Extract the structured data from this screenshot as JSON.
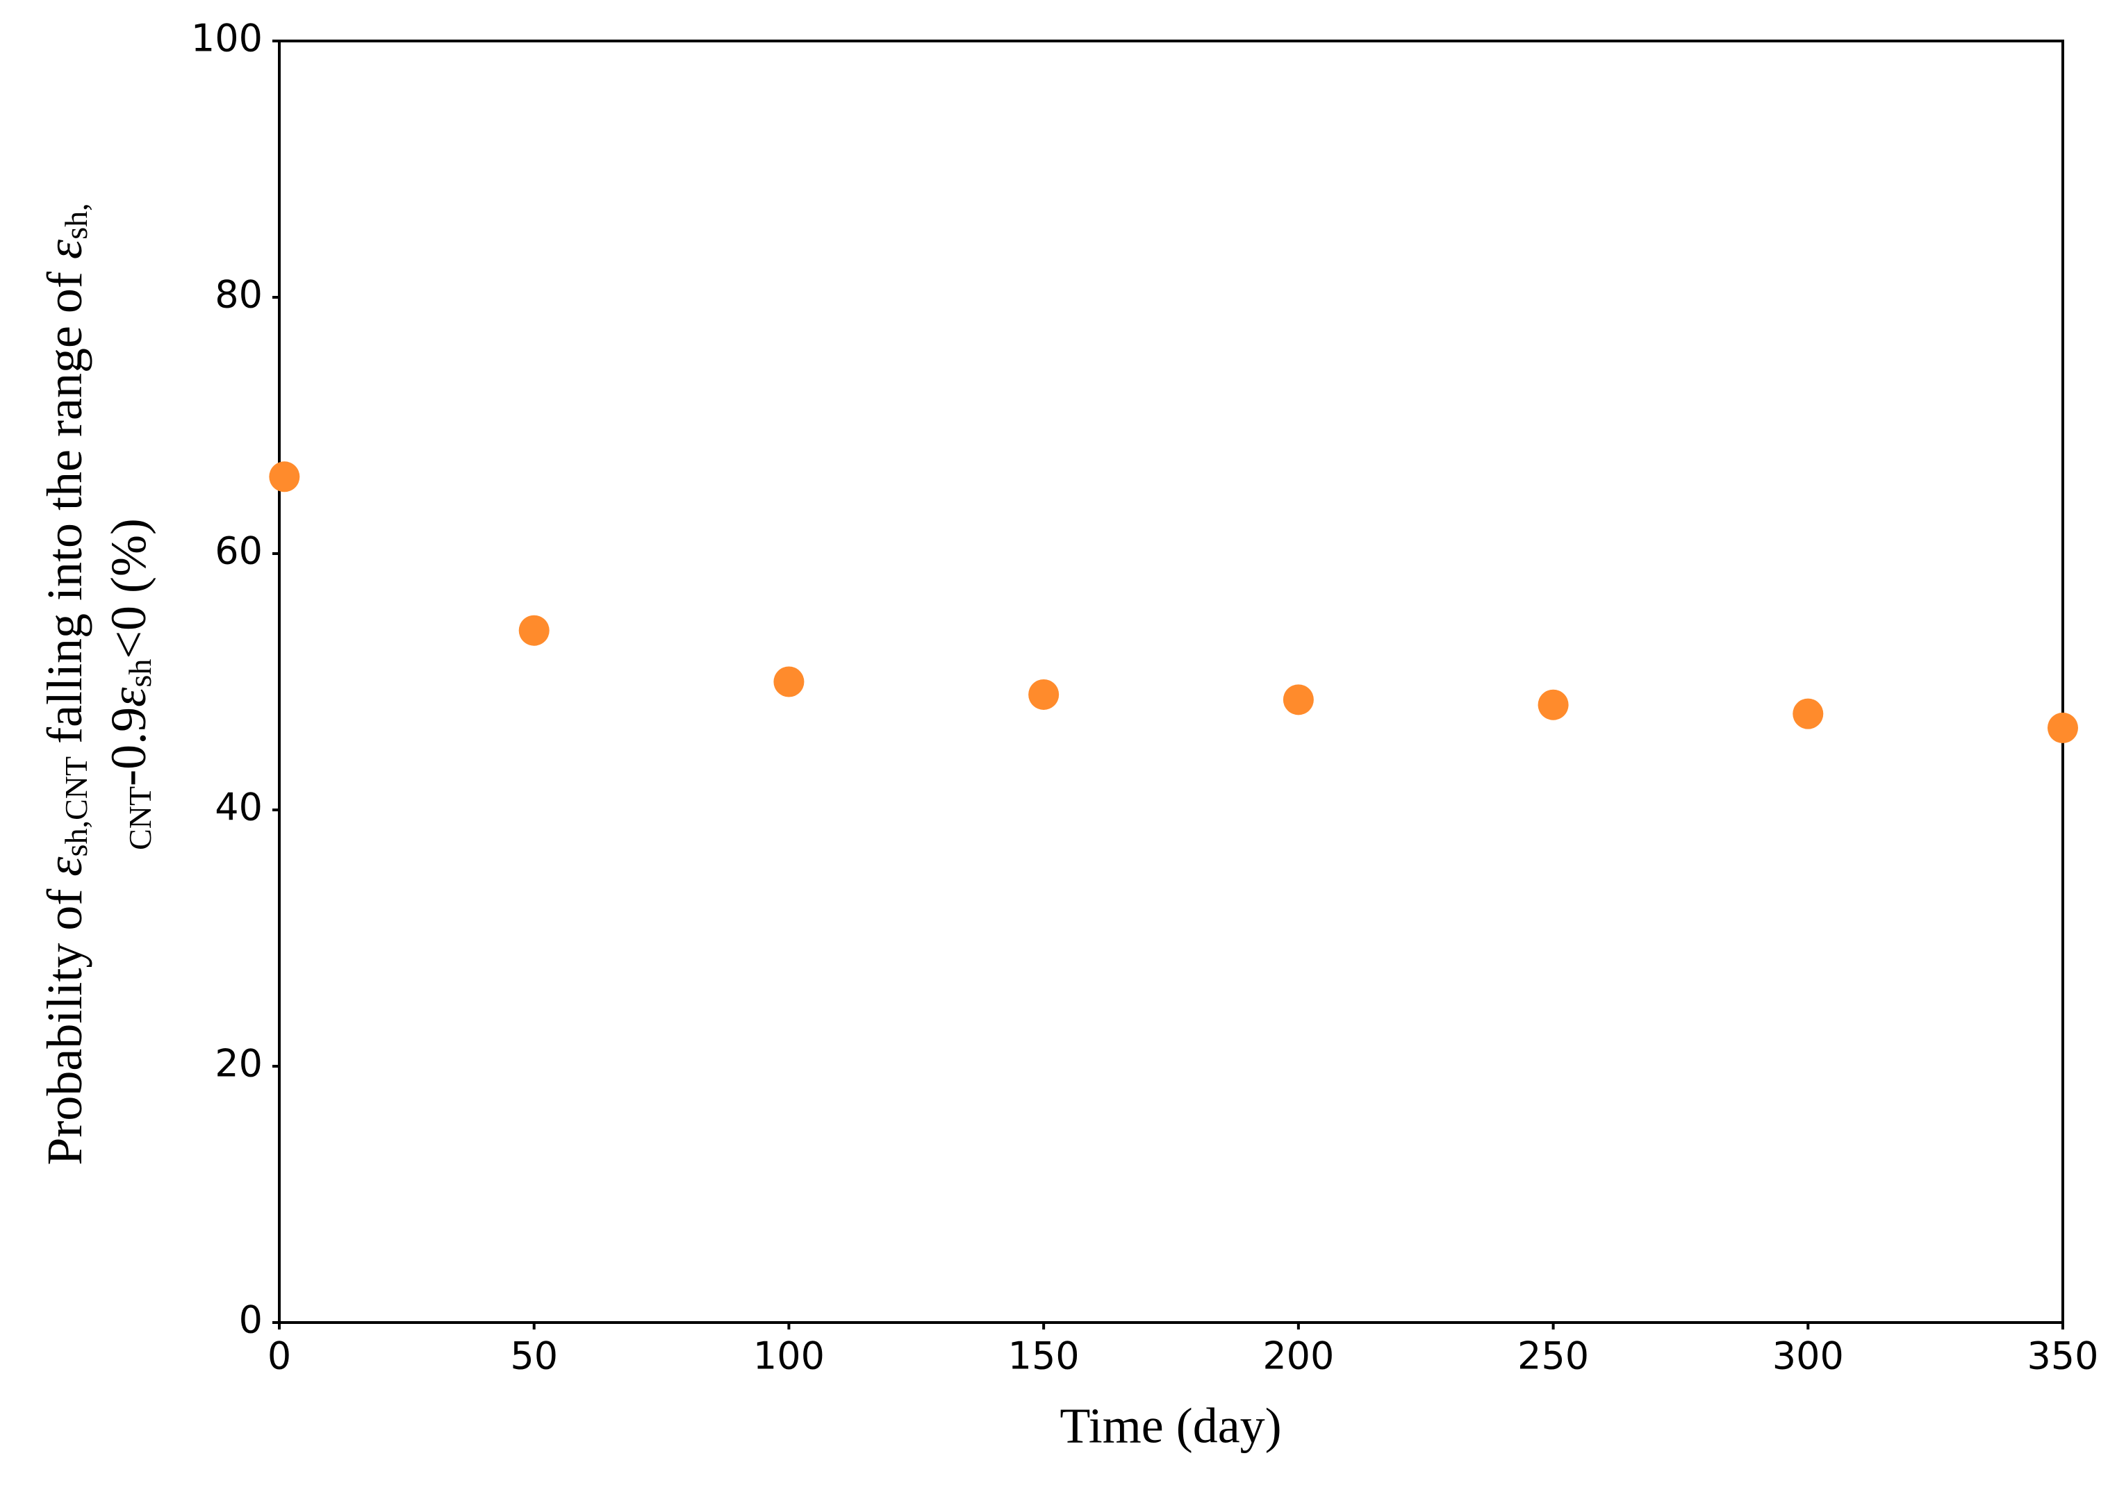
{
  "chart_data": {
    "type": "scatter",
    "xlabel": "Time (day)",
    "ylabel": [
      [
        "Probability of ",
        "ε",
        "sh,CNT",
        " falling into the range of ",
        "ε",
        "sh,"
      ],
      [
        "CNT",
        "-0.9",
        "ε",
        "sh",
        "<0 (%)"
      ]
    ],
    "series": [
      {
        "color": "#ff8b2c",
        "x": [
          1,
          50,
          100,
          150,
          200,
          250,
          300,
          350
        ],
        "values": [
          66,
          54,
          50,
          49,
          48.6,
          48.2,
          47.5,
          46.4
        ]
      }
    ],
    "xlim": [
      0,
      350
    ],
    "xticks": [
      0,
      50,
      100,
      150,
      200,
      250,
      300,
      350
    ],
    "ylim": [
      0,
      100
    ],
    "yticks": [
      0,
      20,
      40,
      60,
      80,
      100
    ],
    "grid": false
  }
}
